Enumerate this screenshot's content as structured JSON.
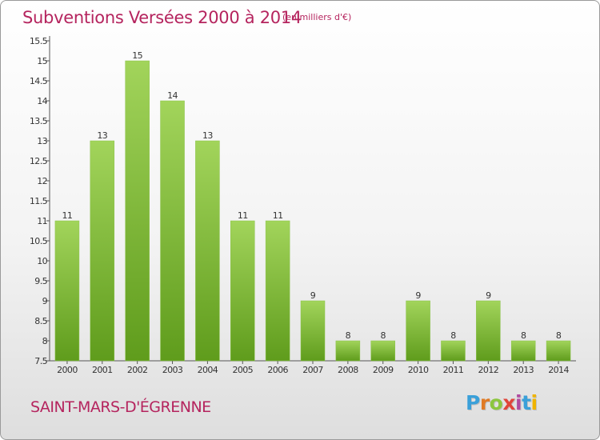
{
  "title": "Subventions Versées 2000 à 2014",
  "unit_note": "(en milliers d'€)",
  "commune": "SAINT-MARS-D'ÉGRENNE",
  "logo_text": "Proxiti",
  "colors": {
    "bar_top": "#9ccf55",
    "bar_bottom": "#5f9c1c",
    "title": "#b5245e"
  },
  "chart_data": {
    "type": "bar",
    "title": "Subventions Versées 2000 à 2014",
    "subtitle": "(en milliers d'€)",
    "categories": [
      "2000",
      "2001",
      "2002",
      "2003",
      "2004",
      "2005",
      "2006",
      "2007",
      "2008",
      "2009",
      "2010",
      "2011",
      "2012",
      "2013",
      "2014"
    ],
    "values": [
      11,
      13,
      15,
      14,
      13,
      11,
      11,
      9,
      8,
      8,
      9,
      8,
      9,
      8,
      8
    ],
    "ylim": [
      7.5,
      15.5
    ],
    "yticks": [
      "7.5",
      "8",
      "8.5",
      "9",
      "9.5",
      "10",
      "10.5",
      "11",
      "11.5",
      "12",
      "12.5",
      "13",
      "13.5",
      "14",
      "14.5",
      "15",
      "15.5"
    ],
    "ytick_values": [
      7.5,
      8,
      8.5,
      9,
      9.5,
      10,
      10.5,
      11,
      11.5,
      12,
      12.5,
      13,
      13.5,
      14,
      14.5,
      15,
      15.5
    ],
    "xlabel": "",
    "ylabel": "",
    "grid": false
  }
}
